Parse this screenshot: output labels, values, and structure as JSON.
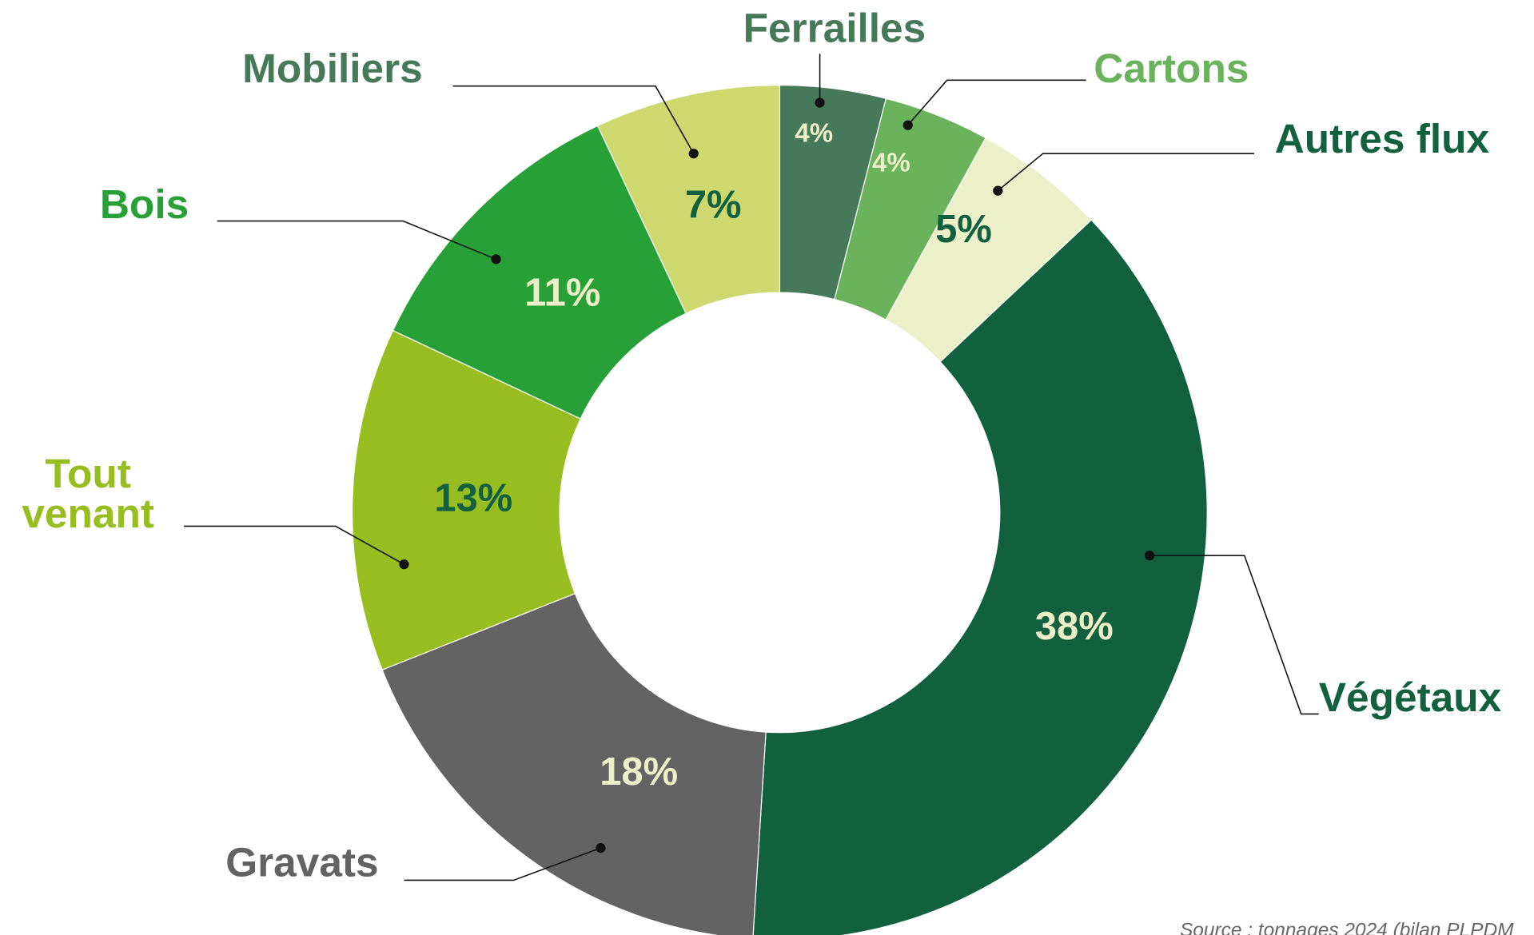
{
  "chart_data": {
    "type": "donut",
    "categories": [
      "Ferrailles",
      "Cartons",
      "Autres flux",
      "Végétaux",
      "Gravats",
      "Tout venant",
      "Bois",
      "Mobiliers"
    ],
    "values": [
      4,
      4,
      5,
      38,
      18,
      13,
      11,
      7
    ],
    "value_labels": [
      "4%",
      "4%",
      "5%",
      "38%",
      "18%",
      "13%",
      "11%",
      "7%"
    ],
    "colors": [
      "#46795a",
      "#6ab25b",
      "#ebf0c8",
      "#11603f",
      "#636363",
      "#97bd20",
      "#28a038",
      "#cdd96e"
    ],
    "label_colors": [
      "#46795a",
      "#6ab25b",
      "#11603f",
      "#11603f",
      "#636363",
      "#97bd20",
      "#28a038",
      "#46795a"
    ],
    "value_label_colors": [
      "#ebf0c8",
      "#ebf0c8",
      "#11603f",
      "#ebf0c8",
      "#ebf0c8",
      "#11603f",
      "#ebf0c8",
      "#11603f"
    ],
    "source": "Source : tonnages 2024 (bilan PLPDM"
  }
}
